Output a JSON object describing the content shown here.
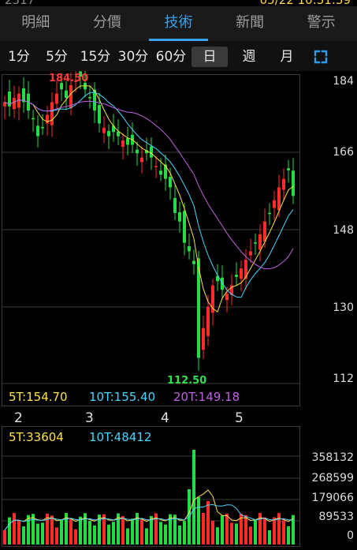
{
  "top_strip": {
    "left_text": "2317",
    "right_text": "05/22 10:31:39"
  },
  "tabs": [
    {
      "label": "明細"
    },
    {
      "label": "分價"
    },
    {
      "label": "技術",
      "active": true
    },
    {
      "label": "新聞"
    },
    {
      "label": "警示"
    }
  ],
  "periods": [
    {
      "label": "1分"
    },
    {
      "label": "5分"
    },
    {
      "label": "15分"
    },
    {
      "label": "30分"
    },
    {
      "label": "60分"
    },
    {
      "label": "日",
      "active": true
    },
    {
      "label": "週"
    },
    {
      "label": "月"
    }
  ],
  "expand_icon": "expand-icon",
  "price_chart": {
    "high_label": "184.50",
    "low_label": "112.50",
    "y_ticks": [
      "184",
      "166",
      "148",
      "130",
      "112"
    ],
    "x_ticks": [
      "2",
      "3",
      "4",
      "5"
    ],
    "ma": {
      "ma5": "5T:154.70",
      "ma10": "10T:155.40",
      "ma20": "20T:149.18"
    }
  },
  "volume_chart": {
    "ma5": "5T:33604",
    "ma10": "10T:48412",
    "y_ticks": [
      "358132",
      "268599",
      "179066",
      "89533",
      "0"
    ]
  },
  "colors": {
    "up": "#ff2a2a",
    "down": "#22dd44",
    "ma5": "#ffe14a",
    "ma10": "#4ad2ff",
    "ma20": "#c060e0",
    "accent": "#3aa0e8"
  },
  "chart_data": {
    "type": "candlestick",
    "y_range": [
      112,
      184
    ],
    "volume_range": [
      0,
      358132
    ],
    "title": "",
    "xlabel": "",
    "ylabel": ""
  }
}
